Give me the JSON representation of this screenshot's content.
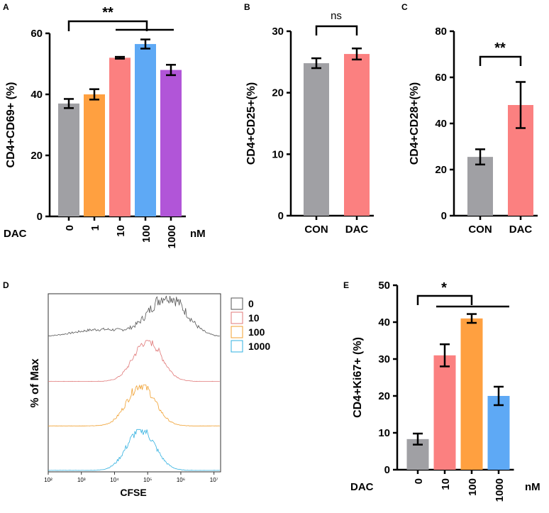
{
  "chart_data": [
    {
      "panel": "A",
      "type": "bar",
      "ylabel": "CD4+CD69+ (%)",
      "xprefix": "DAC",
      "xunit": "nM",
      "categories": [
        "0",
        "1",
        "10",
        "100",
        "1000"
      ],
      "values": [
        37,
        40,
        52,
        56.5,
        48
      ],
      "errors": [
        1.5,
        1.7,
        0.3,
        1.5,
        1.7
      ],
      "colors": [
        "#a0a0a4",
        "#ffa040",
        "#fb8080",
        "#5ea9f5",
        "#b155d8"
      ],
      "ylim": [
        0,
        60
      ],
      "yticks": [
        0,
        20,
        40,
        60
      ],
      "significance": "**"
    },
    {
      "panel": "B",
      "type": "bar",
      "ylabel": "CD4+CD25+(%)",
      "categories": [
        "CON",
        "DAC"
      ],
      "values": [
        24.8,
        26.3
      ],
      "errors": [
        0.8,
        0.9
      ],
      "colors": [
        "#a0a0a4",
        "#fb8080"
      ],
      "ylim": [
        0,
        30
      ],
      "yticks": [
        0,
        10,
        20,
        30
      ],
      "significance": "ns"
    },
    {
      "panel": "C",
      "type": "bar",
      "ylabel": "CD4+CD28+(%)",
      "categories": [
        "CON",
        "DAC"
      ],
      "values": [
        25.5,
        48
      ],
      "errors": [
        3.3,
        10
      ],
      "colors": [
        "#a0a0a4",
        "#fb8080"
      ],
      "ylim": [
        0,
        80
      ],
      "yticks": [
        0,
        20,
        40,
        60,
        80
      ],
      "significance": "**"
    },
    {
      "panel": "D",
      "type": "histogram",
      "ylabel": "% of Max",
      "xlabel": "CFSE",
      "xtick_labels": [
        "10²",
        "10³",
        "10⁴",
        "10⁵",
        "10⁶",
        "10⁷"
      ],
      "series": [
        {
          "name": "0",
          "color": "#555555",
          "peak_log": 5.6
        },
        {
          "name": "10",
          "color": "#e07878",
          "peak_log": 5.0
        },
        {
          "name": "100",
          "color": "#f0a030",
          "peak_log": 4.8
        },
        {
          "name": "1000",
          "color": "#30b0e0",
          "peak_log": 4.8
        }
      ]
    },
    {
      "panel": "E",
      "type": "bar",
      "ylabel": "CD4+Ki67+ (%)",
      "xprefix": "DAC",
      "xunit": "nM",
      "categories": [
        "0",
        "10",
        "100",
        "1000"
      ],
      "values": [
        8.3,
        31,
        41,
        20
      ],
      "errors": [
        1.5,
        3,
        1.2,
        2.5
      ],
      "colors": [
        "#a0a0a4",
        "#fb8080",
        "#ffa040",
        "#5ea9f5"
      ],
      "ylim": [
        0,
        50
      ],
      "yticks": [
        0,
        10,
        20,
        30,
        40,
        50
      ],
      "significance": "*"
    }
  ]
}
